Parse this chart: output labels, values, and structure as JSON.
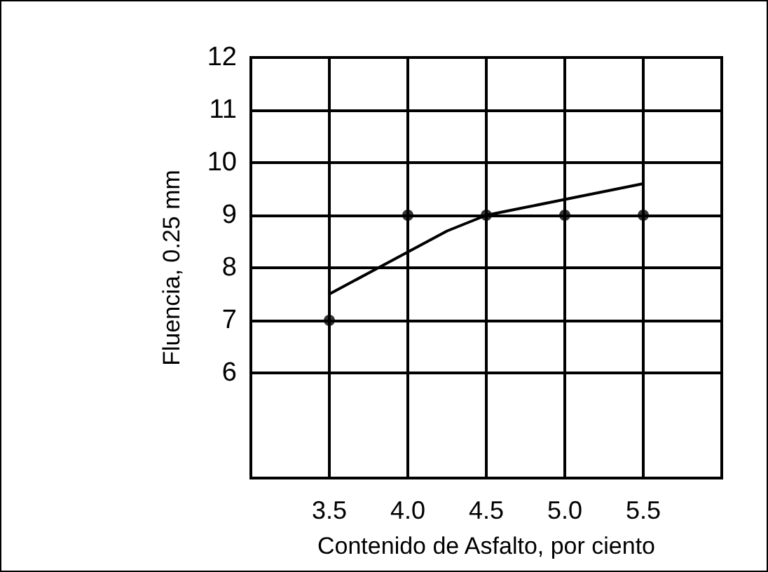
{
  "chart_data": {
    "type": "scatter",
    "xlabel": "Contenido de Asfalto, por ciento",
    "ylabel": "Fluencia, 0.25 mm",
    "xlim": [
      3.0,
      6.0
    ],
    "xticks": [
      3.5,
      {
        "value": 4,
        "label": "4.0"
      },
      4.5,
      {
        "value": 5,
        "label": "5.0"
      },
      5.5
    ],
    "ylim": [
      4,
      12
    ],
    "yticks": [
      6,
      7,
      8,
      9,
      10,
      11,
      12
    ],
    "grid": true,
    "series": [
      {
        "color": "#000000",
        "marker": "circle",
        "x": [
          3.5,
          4,
          4.5,
          5,
          5.5
        ],
        "values": [
          7,
          9,
          9,
          9,
          9
        ]
      },
      {
        "type": "line",
        "color": "#000000",
        "marker": "none",
        "line_style": "solid",
        "x": [
          3.5,
          3.75,
          4,
          4.25,
          4.5,
          4.75,
          5,
          5.25,
          5.5
        ],
        "values": [
          7.5,
          7.9,
          8.3,
          8.7,
          9.0,
          9.15,
          9.3,
          9.45,
          9.6
        ]
      }
    ]
  }
}
